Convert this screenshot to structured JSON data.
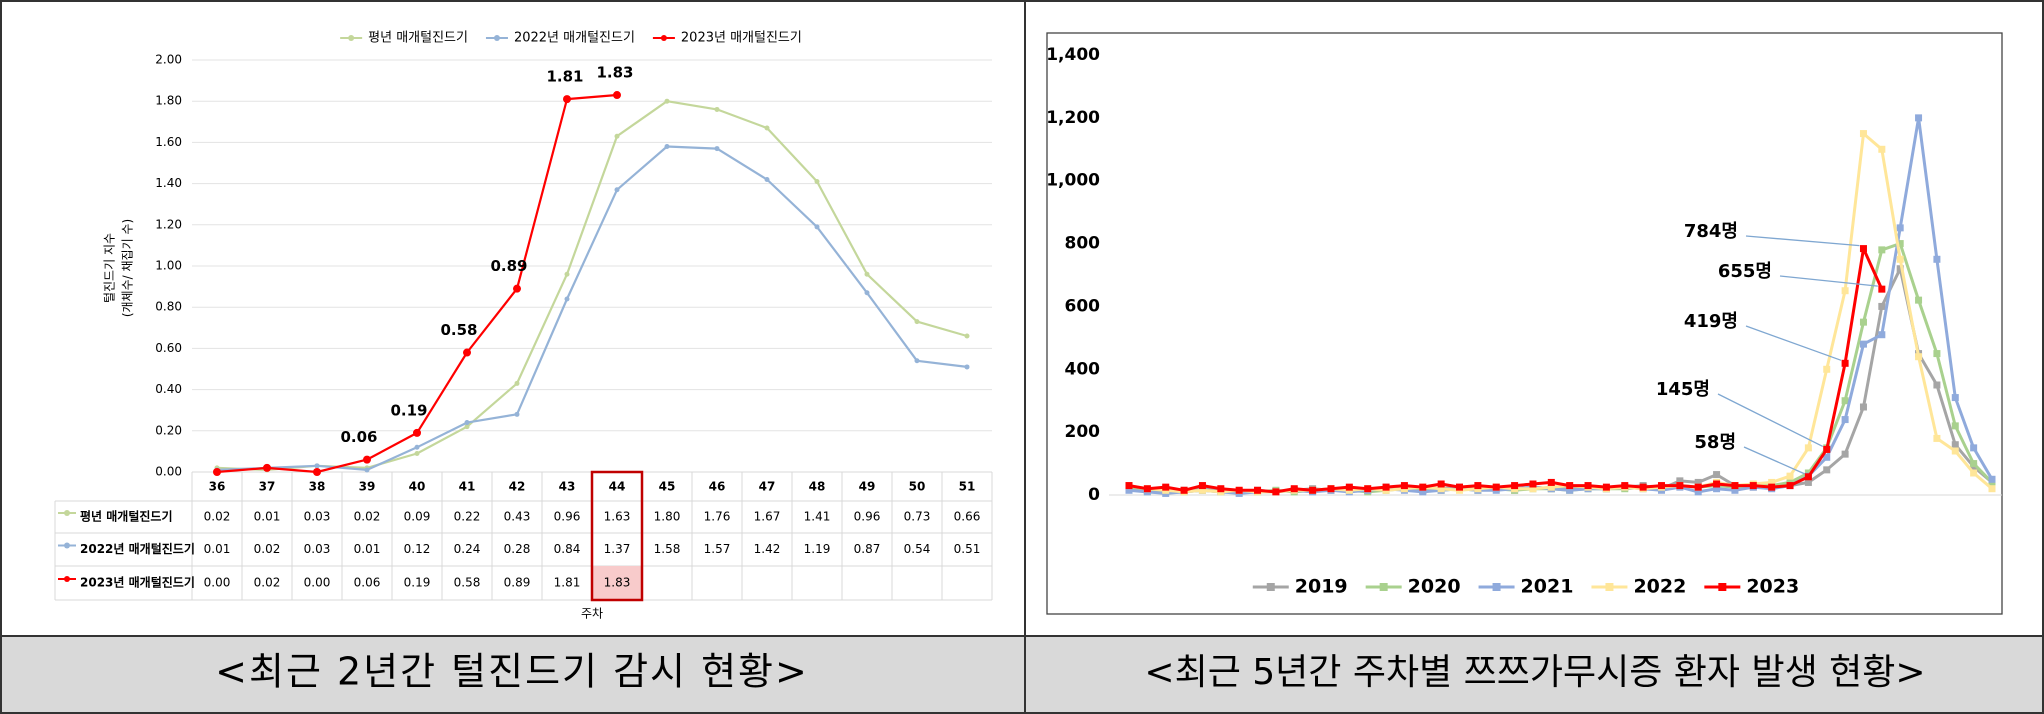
{
  "chart_data": [
    {
      "type": "line",
      "title": "<최근 2년간 털진드기 감시 현황>",
      "y_label": [
        "털진드기 지수",
        "(개체수/ 채집기 수)"
      ],
      "x_label": "주차",
      "categories": [
        "36",
        "37",
        "38",
        "39",
        "40",
        "41",
        "42",
        "43",
        "44",
        "45",
        "46",
        "47",
        "48",
        "49",
        "50",
        "51"
      ],
      "ylim": [
        0,
        2
      ],
      "yticks": [
        {
          "value": 0,
          "label": "0.00"
        },
        {
          "value": 0.2,
          "label": "0.20"
        },
        {
          "value": 0.4,
          "label": "0.40"
        },
        {
          "value": 0.6,
          "label": "0.60"
        },
        {
          "value": 0.8,
          "label": "0.80"
        },
        {
          "value": 1,
          "label": "1.00"
        },
        {
          "value": 1.2,
          "label": "1.20"
        },
        {
          "value": 1.4,
          "label": "1.40"
        },
        {
          "value": 1.6,
          "label": "1.60"
        },
        {
          "value": 1.8,
          "label": "1.80"
        },
        {
          "value": 2,
          "label": "2.00"
        }
      ],
      "grid": true,
      "legend": "top",
      "data_table": true,
      "highlight_category": "44",
      "series": [
        {
          "name": "평년 매개털진드기",
          "color": "#c4d79b",
          "values": [
            0.02,
            0.01,
            0.03,
            0.02,
            0.09,
            0.22,
            0.43,
            0.96,
            1.63,
            1.8,
            1.76,
            1.67,
            1.41,
            0.96,
            0.73,
            0.66
          ],
          "value_labels": [
            "0.02",
            "0.01",
            "0.03",
            "0.02",
            "0.09",
            "0.22",
            "0.43",
            "0.96",
            "1.63",
            "1.80",
            "1.76",
            "1.67",
            "1.41",
            "0.96",
            "0.73",
            "0.66"
          ]
        },
        {
          "name": "2022년 매개털진드기",
          "color": "#95b3d7",
          "values": [
            0.01,
            0.02,
            0.03,
            0.01,
            0.12,
            0.24,
            0.28,
            0.84,
            1.37,
            1.58,
            1.57,
            1.42,
            1.19,
            0.87,
            0.54,
            0.51
          ],
          "value_labels": [
            "0.01",
            "0.02",
            "0.03",
            "0.01",
            "0.12",
            "0.24",
            "0.28",
            "0.84",
            "1.37",
            "1.58",
            "1.57",
            "1.42",
            "1.19",
            "0.87",
            "0.54",
            "0.51"
          ]
        },
        {
          "name": "2023년 매개털진드기",
          "color": "#ff0000",
          "values": [
            0,
            0.02,
            0,
            0.06,
            0.19,
            0.58,
            0.89,
            1.81,
            1.83,
            null,
            null,
            null,
            null,
            null,
            null,
            null
          ],
          "value_labels": [
            "0.00",
            "0.02",
            "0.00",
            "0.06",
            "0.19",
            "0.58",
            "0.89",
            "1.81",
            "1.83",
            null,
            null,
            null,
            null,
            null,
            null,
            null
          ],
          "point_labels": [
            null,
            null,
            null,
            "0.06",
            "0.19",
            "0.58",
            "0.89",
            "1.81",
            "1.83",
            null,
            null,
            null,
            null,
            null,
            null,
            null
          ]
        }
      ]
    },
    {
      "type": "line",
      "title": "<최근 5년간 주차별 쯔쯔가무시증 환자 발생 현황>",
      "categories": [
        null,
        null,
        null,
        null,
        null,
        null,
        null,
        null,
        null,
        null,
        null,
        null,
        null,
        null,
        null,
        null,
        null,
        null,
        null,
        null,
        null,
        null,
        null,
        null,
        null,
        null,
        null,
        null,
        null,
        null,
        null,
        null,
        null,
        null,
        null,
        null,
        null,
        null,
        null,
        null,
        null,
        null,
        null,
        null,
        null,
        null,
        null,
        null
      ],
      "ylim": [
        0,
        1400
      ],
      "yticks": [
        0,
        200,
        400,
        600,
        800,
        {
          "value": 1000,
          "label": "1,000"
        },
        {
          "value": 1200,
          "label": "1,200"
        },
        {
          "value": 1400,
          "label": "1,400"
        }
      ],
      "grid": false,
      "legend": "bottom",
      "annotations": [
        "784명",
        "655명",
        "419명",
        "145명",
        "58명"
      ],
      "series": [
        {
          "name": "2019",
          "color": "#a5a5a5",
          "values": [
            25,
            15,
            20,
            15,
            20,
            15,
            10,
            15,
            10,
            15,
            20,
            15,
            20,
            15,
            25,
            20,
            15,
            20,
            25,
            20,
            25,
            15,
            25,
            20,
            20,
            25,
            20,
            25,
            30,
            20,
            45,
            40,
            65,
            30,
            25,
            25,
            30,
            40,
            80,
            130,
            280,
            600,
            720,
            450,
            350,
            160,
            90,
            40
          ]
        },
        {
          "name": "2020",
          "color": "#a9d18e",
          "values": [
            20,
            10,
            15,
            10,
            15,
            10,
            10,
            10,
            15,
            10,
            15,
            20,
            15,
            10,
            15,
            20,
            15,
            15,
            20,
            15,
            20,
            15,
            20,
            20,
            15,
            20,
            20,
            20,
            25,
            20,
            30,
            25,
            30,
            25,
            30,
            30,
            40,
            70,
            150,
            300,
            550,
            780,
            800,
            620,
            450,
            220,
            100,
            40
          ]
        },
        {
          "name": "2021",
          "color": "#8faadc",
          "values": [
            15,
            10,
            5,
            10,
            15,
            10,
            5,
            10,
            10,
            15,
            10,
            15,
            10,
            15,
            20,
            15,
            10,
            15,
            20,
            15,
            15,
            20,
            25,
            20,
            15,
            20,
            20,
            25,
            20,
            15,
            25,
            10,
            20,
            15,
            25,
            20,
            30,
            60,
            120,
            240,
            480,
            510,
            850,
            1200,
            750,
            310,
            150,
            50
          ]
        },
        {
          "name": "2022",
          "color": "#ffe699",
          "values": [
            30,
            20,
            15,
            10,
            15,
            10,
            15,
            10,
            10,
            15,
            15,
            20,
            15,
            20,
            15,
            20,
            25,
            20,
            15,
            20,
            25,
            20,
            20,
            25,
            30,
            25,
            20,
            25,
            20,
            25,
            30,
            25,
            40,
            30,
            35,
            40,
            60,
            150,
            400,
            650,
            1150,
            1100,
            750,
            440,
            180,
            140,
            70,
            20
          ]
        },
        {
          "name": "2023",
          "color": "#ff0000",
          "values": [
            30,
            20,
            25,
            15,
            30,
            20,
            15,
            15,
            10,
            20,
            15,
            20,
            25,
            20,
            25,
            30,
            25,
            35,
            25,
            30,
            25,
            30,
            35,
            40,
            30,
            30,
            25,
            30,
            25,
            30,
            30,
            25,
            35,
            30,
            30,
            25,
            30,
            58,
            145,
            419,
            784,
            655,
            null,
            null,
            null,
            null,
            null,
            null
          ]
        }
      ]
    }
  ]
}
